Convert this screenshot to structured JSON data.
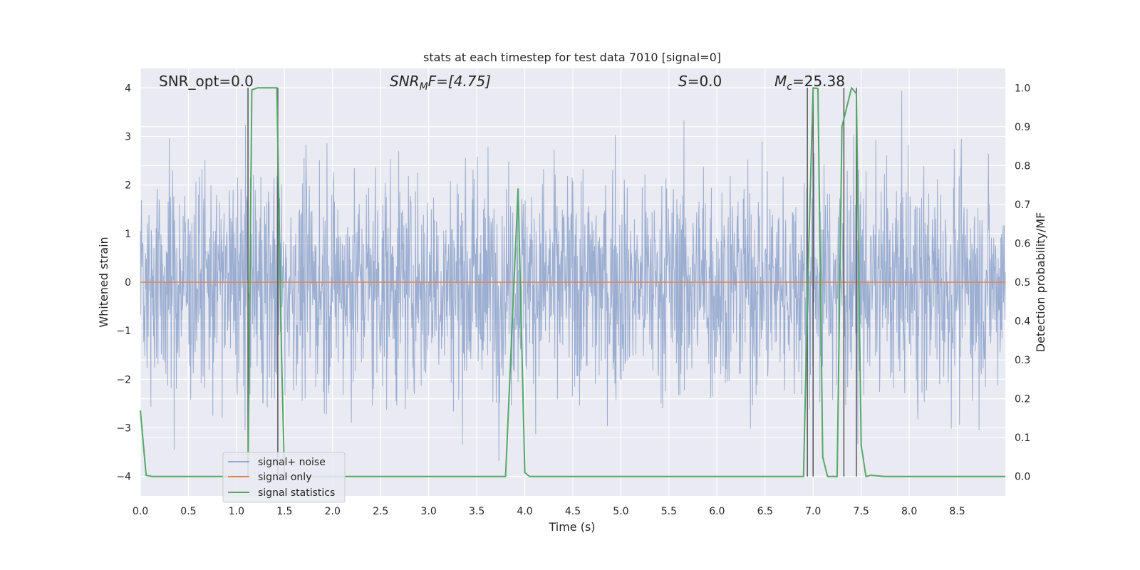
{
  "chart_data": {
    "type": "line",
    "title": "stats at each timestep for test data 7010 [signal=0]",
    "xlabel": "Time (s)",
    "ylabel_left": "Whitened strain",
    "ylabel_right": "Detection probability/MF",
    "xlim": [
      0,
      9
    ],
    "ylim_left": [
      -4.4,
      4.4
    ],
    "ylim_right": [
      -0.05,
      1.05
    ],
    "x_ticks": [
      "0.0",
      "0.5",
      "1.0",
      "1.5",
      "2.0",
      "2.5",
      "3.0",
      "3.5",
      "4.0",
      "4.5",
      "5.0",
      "5.5",
      "6.0",
      "6.5",
      "7.0",
      "7.5",
      "8.0",
      "8.5"
    ],
    "y_ticks_left": [
      "−4",
      "−3",
      "−2",
      "−1",
      "0",
      "1",
      "2",
      "3",
      "4"
    ],
    "y_ticks_right": [
      "0.0",
      "0.1",
      "0.2",
      "0.3",
      "0.4",
      "0.5",
      "0.6",
      "0.7",
      "0.8",
      "0.9",
      "1.0"
    ],
    "grid": true,
    "legend_position": "lower-left",
    "annotations": {
      "snr_opt": "SNR_opt=0.0",
      "snr_mf_base": "SNR",
      "snr_mf_sub": "M",
      "snr_mf_rest": "F=[4.75]",
      "s_base": "S",
      "s_rest": "=0.0",
      "mc_base": "M",
      "mc_sub": "c",
      "mc_rest": "=25.38"
    },
    "series": [
      {
        "name": "signal+ noise",
        "color": "#4c72b0",
        "axis": "left",
        "sample_rate_hz": 256,
        "rms": 1.0,
        "note_visible_extent": [
          -4.0,
          4.0
        ]
      },
      {
        "name": "signal only",
        "color": "#dd8452",
        "axis": "left",
        "value": 0.0
      },
      {
        "name": "signal statistics",
        "color": "#55a868",
        "axis": "right",
        "x": [
          0.0,
          0.06,
          0.12,
          1.0,
          1.12,
          1.16,
          1.22,
          1.3,
          1.42,
          1.47,
          1.5,
          2.0,
          3.0,
          3.8,
          3.93,
          4.0,
          4.05,
          4.5,
          5.0,
          6.0,
          6.9,
          6.95,
          7.0,
          7.05,
          7.1,
          7.15,
          7.25,
          7.3,
          7.4,
          7.45,
          7.5,
          7.55,
          7.6,
          7.75,
          8.0,
          8.5,
          9.0
        ],
        "y": [
          0.17,
          0.003,
          0.0,
          0.0,
          0.0,
          0.995,
          1.0,
          1.0,
          1.0,
          0.3,
          0.0,
          0.0,
          0.0,
          0.0,
          0.74,
          0.01,
          0.0,
          0.0,
          0.0,
          0.0,
          0.0,
          0.55,
          1.0,
          0.998,
          0.05,
          0.0,
          0.0,
          0.9,
          1.0,
          0.985,
          0.08,
          0.0,
          0.003,
          0.0,
          0.0,
          0.0,
          0.0
        ]
      }
    ],
    "vertical_lines": {
      "color": "#555555",
      "x": [
        1.12,
        1.43,
        6.94,
        7.0,
        7.32,
        7.45
      ]
    }
  }
}
